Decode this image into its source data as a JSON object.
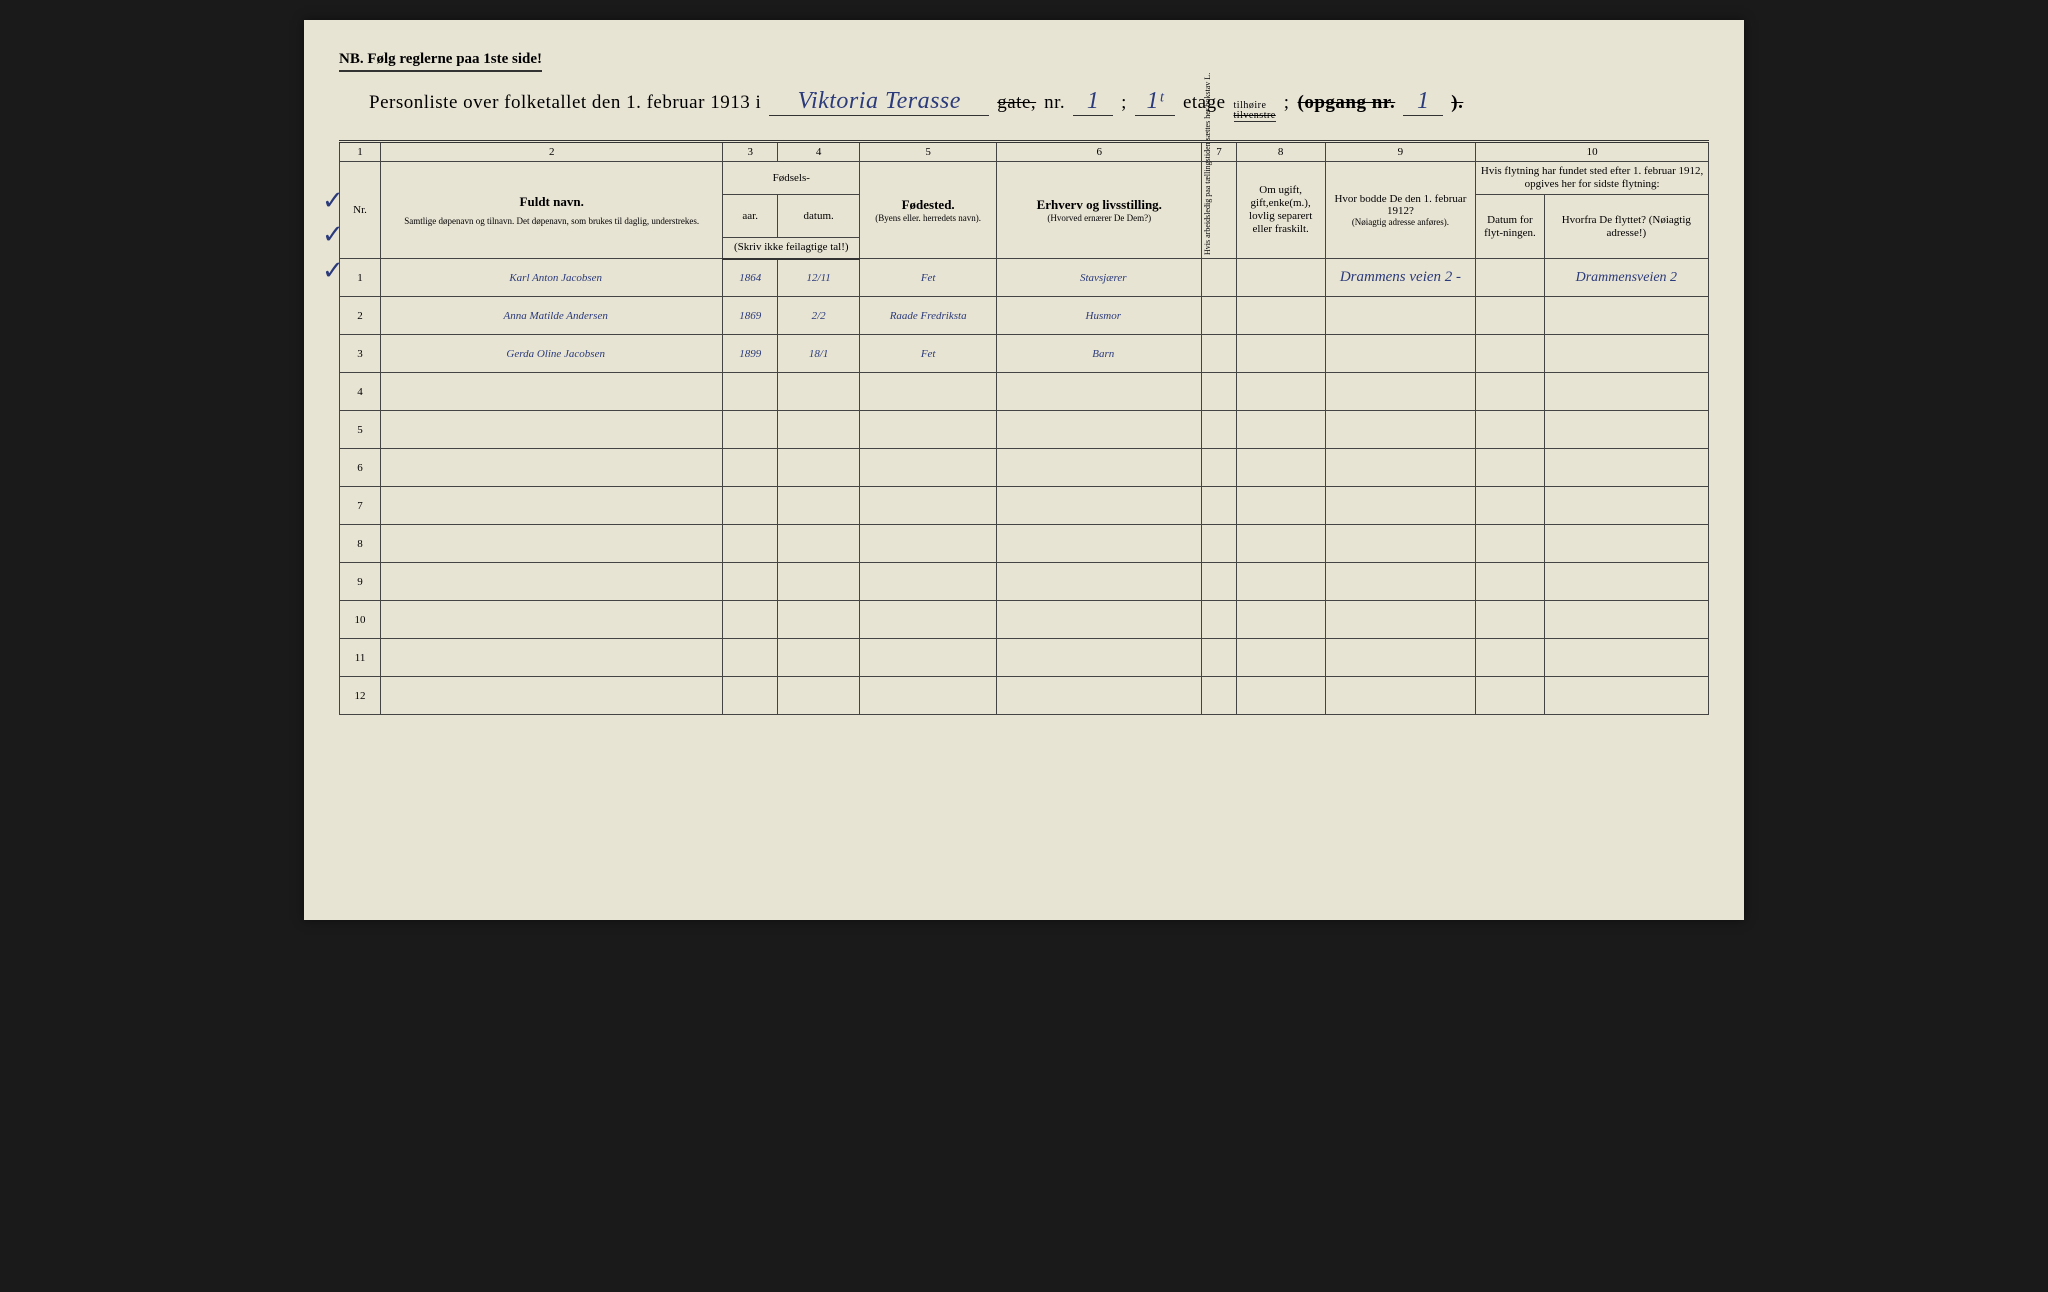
{
  "document": {
    "nb_line": "NB.  Følg reglerne paa 1ste side!",
    "title_prefix": "Personliste over folketallet den 1. februar 1913 i",
    "street_name": "Viktoria Terasse",
    "gate_label_struck": "gate,",
    "nr_label": "nr.",
    "nr_value": "1",
    "semicolon": ";",
    "etage_value": "1ᵗ",
    "etage_label": "etage",
    "tilhoire": "tilhøire",
    "tilvenstre_struck": "tilvenstre",
    "opgang_label": "(opgang nr.",
    "opgang_value": "1",
    "closing": ").",
    "background_color": "#e8e4d4",
    "ink_color": "#2a3a7a",
    "border_color": "#444"
  },
  "columns": {
    "nums": [
      "1",
      "2",
      "3",
      "4",
      "5",
      "6",
      "7",
      "8",
      "9",
      "10"
    ],
    "nr": "Nr.",
    "fuldt_navn": "Fuldt navn.",
    "fuldt_navn_sub": "Samtlige døpenavn og tilnavn.  Det døpenavn, som brukes til daglig, understrekes.",
    "fodsels": "Fødsels-",
    "aar": "aar.",
    "datum": "datum.",
    "skriv_ikke": "(Skriv ikke feilagtige tal!)",
    "fodested": "Fødested.",
    "fodested_sub": "(Byens eller. herredets navn).",
    "erhverv": "Erhverv og livsstilling.",
    "erhverv_sub": "(Hvorved ernærer De Dem?)",
    "col7_vert": "Hvis arbeidsledig paa tællingstiden sættes her bokstav L.",
    "col8": "Om ugift, gift,enke(m.), lovlig separert eller fraskilt.",
    "col9": "Hvor bodde De den 1. februar 1912?",
    "col9_sub": "(Nøiagtig adresse anføres).",
    "col10": "Hvis flytning har fundet sted efter 1. februar 1912, opgives her for sidste flytning:",
    "col10a": "Datum for flyt-ningen.",
    "col10b": "Hvorfra De flyttet? (Nøiagtig adresse!)"
  },
  "rows": [
    {
      "nr": "1",
      "navn": "Karl Anton Jacobsen",
      "aar": "1864",
      "datum": "12/11",
      "fodested": "Fet",
      "erhverv": "Stavsjærer",
      "col7": "",
      "col8": "",
      "col9": "Drammens veien 2 -",
      "col10a": "",
      "col10b": "Drammensveien 2"
    },
    {
      "nr": "2",
      "navn": "Anna Matilde Andersen",
      "aar": "1869",
      "datum": "2/2",
      "fodested": "Raade Fredriksta",
      "erhverv": "Husmor",
      "col7": "",
      "col8": "",
      "col9": "",
      "col10a": "",
      "col10b": ""
    },
    {
      "nr": "3",
      "navn": "Gerda Oline Jacobsen",
      "aar": "1899",
      "datum": "18/1",
      "fodested": "Fet",
      "erhverv": "Barn",
      "col7": "",
      "col8": "",
      "col9": "",
      "col10a": "",
      "col10b": ""
    },
    {
      "nr": "4",
      "navn": "",
      "aar": "",
      "datum": "",
      "fodested": "",
      "erhverv": "",
      "col7": "",
      "col8": "",
      "col9": "",
      "col10a": "",
      "col10b": ""
    },
    {
      "nr": "5",
      "navn": "",
      "aar": "",
      "datum": "",
      "fodested": "",
      "erhverv": "",
      "col7": "",
      "col8": "",
      "col9": "",
      "col10a": "",
      "col10b": ""
    },
    {
      "nr": "6",
      "navn": "",
      "aar": "",
      "datum": "",
      "fodested": "",
      "erhverv": "",
      "col7": "",
      "col8": "",
      "col9": "",
      "col10a": "",
      "col10b": ""
    },
    {
      "nr": "7",
      "navn": "",
      "aar": "",
      "datum": "",
      "fodested": "",
      "erhverv": "",
      "col7": "",
      "col8": "",
      "col9": "",
      "col10a": "",
      "col10b": ""
    },
    {
      "nr": "8",
      "navn": "",
      "aar": "",
      "datum": "",
      "fodested": "",
      "erhverv": "",
      "col7": "",
      "col8": "",
      "col9": "",
      "col10a": "",
      "col10b": ""
    },
    {
      "nr": "9",
      "navn": "",
      "aar": "",
      "datum": "",
      "fodested": "",
      "erhverv": "",
      "col7": "",
      "col8": "",
      "col9": "",
      "col10a": "",
      "col10b": ""
    },
    {
      "nr": "10",
      "navn": "",
      "aar": "",
      "datum": "",
      "fodested": "",
      "erhverv": "",
      "col7": "",
      "col8": "",
      "col9": "",
      "col10a": "",
      "col10b": ""
    },
    {
      "nr": "11",
      "navn": "",
      "aar": "",
      "datum": "",
      "fodested": "",
      "erhverv": "",
      "col7": "",
      "col8": "",
      "col9": "",
      "col10a": "",
      "col10b": ""
    },
    {
      "nr": "12",
      "navn": "",
      "aar": "",
      "datum": "",
      "fodested": "",
      "erhverv": "",
      "col7": "",
      "col8": "",
      "col9": "",
      "col10a": "",
      "col10b": ""
    }
  ],
  "layout": {
    "col_widths_pct": [
      3,
      25,
      4,
      6,
      10,
      15,
      2.5,
      6.5,
      11,
      5,
      12
    ]
  }
}
